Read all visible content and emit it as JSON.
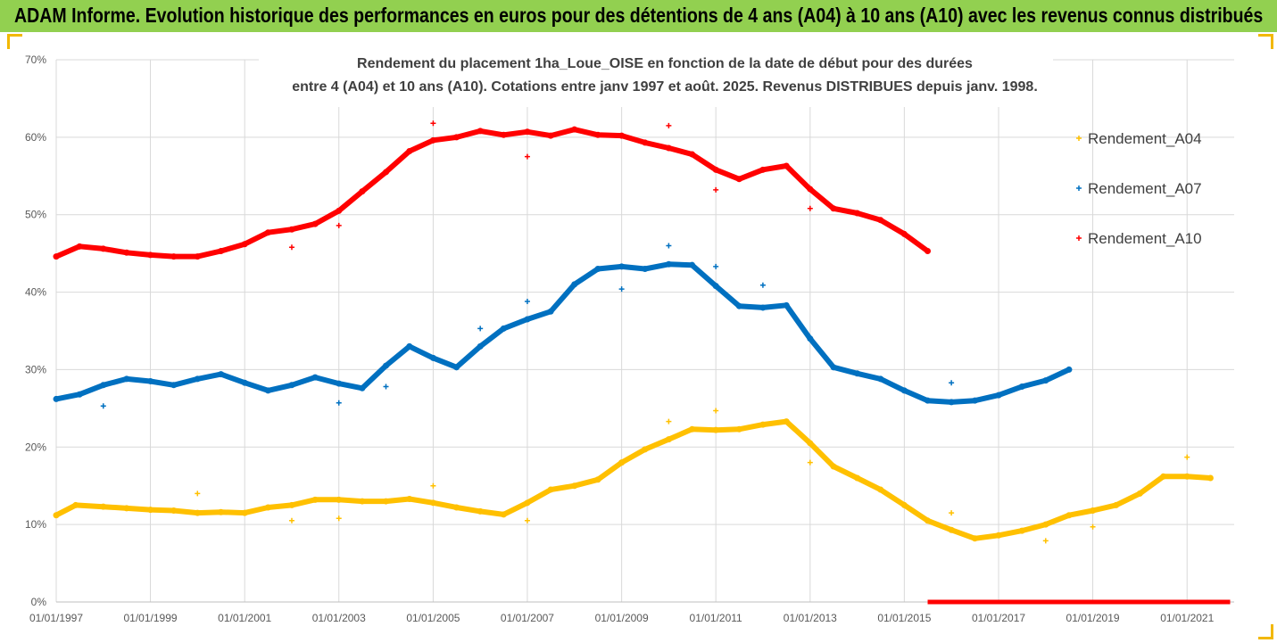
{
  "banner": {
    "title": "ADAM Informe. Evolution historique des performances en euros pour des détentions de 4 ans (A04) à 10 ans (A10) avec les revenus connus distribués"
  },
  "colors": {
    "banner": "#92d050",
    "corner": "#f2b800",
    "A04": "#ffc000",
    "A07": "#0070c0",
    "A10": "#ff0000",
    "grid": "#d9d9d9"
  },
  "chart_data": {
    "type": "scatter",
    "title_lines": [
      "Rendement du placement 1ha_Loue_OISE en fonction de la date de début pour des durées",
      "entre 4 (A04) et 10 ans (A10). Cotations entre janv 1997 et août. 2025. Revenus DISTRIBUES depuis janv. 1998."
    ],
    "xlim": [
      "1997-01-01",
      "2022-01-01"
    ],
    "ylim": [
      0,
      70
    ],
    "y_unit": "%",
    "y_ticks": [
      0,
      10,
      20,
      30,
      40,
      50,
      60,
      70
    ],
    "y_tick_labels": [
      "0%",
      "10%",
      "20%",
      "30%",
      "40%",
      "50%",
      "60%",
      "70%"
    ],
    "x_ticks": [
      "1997-01-01",
      "1999-01-01",
      "2001-01-01",
      "2003-01-01",
      "2005-01-01",
      "2007-01-01",
      "2009-01-01",
      "2011-01-01",
      "2013-01-01",
      "2015-01-01",
      "2017-01-01",
      "2019-01-01",
      "2021-01-01"
    ],
    "x_tick_labels": [
      "01/01/1997",
      "01/01/1999",
      "01/01/2001",
      "01/01/2003",
      "01/01/2005",
      "01/01/2007",
      "01/01/2009",
      "01/01/2011",
      "01/01/2013",
      "01/01/2015",
      "01/01/2017",
      "01/01/2019",
      "01/01/2021"
    ],
    "grid": true,
    "legend_position": "right",
    "series": [
      {
        "name": "Rendement_A04",
        "color": "#ffc000",
        "points": [
          [
            "1997-01-01",
            11.2
          ],
          [
            "1997-06-01",
            12.5
          ],
          [
            "1998-01-01",
            12.3
          ],
          [
            "1998-07-01",
            12.1
          ],
          [
            "1999-01-01",
            11.9
          ],
          [
            "1999-07-01",
            11.8
          ],
          [
            "2000-01-01",
            11.5
          ],
          [
            "2000-07-01",
            11.6
          ],
          [
            "2001-01-01",
            11.5
          ],
          [
            "2001-07-01",
            12.2
          ],
          [
            "2002-01-01",
            12.5
          ],
          [
            "2002-07-01",
            13.2
          ],
          [
            "2003-01-01",
            13.2
          ],
          [
            "2003-07-01",
            13.0
          ],
          [
            "2004-01-01",
            13.0
          ],
          [
            "2004-07-01",
            13.3
          ],
          [
            "2005-01-01",
            12.8
          ],
          [
            "2005-07-01",
            12.2
          ],
          [
            "2006-01-01",
            11.7
          ],
          [
            "2006-07-01",
            11.3
          ],
          [
            "2007-01-01",
            12.8
          ],
          [
            "2007-07-01",
            14.5
          ],
          [
            "2008-01-01",
            15.0
          ],
          [
            "2008-07-01",
            15.8
          ],
          [
            "2009-01-01",
            18.0
          ],
          [
            "2009-07-01",
            19.7
          ],
          [
            "2010-01-01",
            21.0
          ],
          [
            "2010-07-01",
            22.3
          ],
          [
            "2011-01-01",
            22.2
          ],
          [
            "2011-07-01",
            22.3
          ],
          [
            "2012-01-01",
            22.9
          ],
          [
            "2012-07-01",
            23.3
          ],
          [
            "2013-01-01",
            20.5
          ],
          [
            "2013-07-01",
            17.5
          ],
          [
            "2014-01-01",
            16.0
          ],
          [
            "2014-07-01",
            14.5
          ],
          [
            "2015-01-01",
            12.5
          ],
          [
            "2015-07-01",
            10.5
          ],
          [
            "2016-01-01",
            9.3
          ],
          [
            "2016-07-01",
            8.2
          ],
          [
            "2017-01-01",
            8.6
          ],
          [
            "2017-07-01",
            9.2
          ],
          [
            "2018-01-01",
            10.0
          ],
          [
            "2018-07-01",
            11.2
          ],
          [
            "2019-01-01",
            11.8
          ],
          [
            "2019-07-01",
            12.5
          ],
          [
            "2020-01-01",
            14.0
          ],
          [
            "2020-07-01",
            16.2
          ],
          [
            "2021-01-01",
            16.2
          ],
          [
            "2021-07-01",
            16.0
          ]
        ],
        "outliers": [
          [
            "2000-01-01",
            14.0
          ],
          [
            "2002-01-01",
            10.5
          ],
          [
            "2003-01-01",
            10.8
          ],
          [
            "2005-01-01",
            15.0
          ],
          [
            "2007-01-01",
            10.5
          ],
          [
            "2010-01-01",
            23.3
          ],
          [
            "2011-01-01",
            24.7
          ],
          [
            "2013-01-01",
            18.0
          ],
          [
            "2016-01-01",
            11.5
          ],
          [
            "2018-01-01",
            7.9
          ],
          [
            "2019-01-01",
            9.7
          ],
          [
            "2021-01-01",
            18.7
          ]
        ]
      },
      {
        "name": "Rendement_A07",
        "color": "#0070c0",
        "points": [
          [
            "1997-01-01",
            26.2
          ],
          [
            "1997-07-01",
            26.8
          ],
          [
            "1998-01-01",
            28.0
          ],
          [
            "1998-07-01",
            28.8
          ],
          [
            "1999-01-01",
            28.5
          ],
          [
            "1999-07-01",
            28.0
          ],
          [
            "2000-01-01",
            28.8
          ],
          [
            "2000-07-01",
            29.4
          ],
          [
            "2001-01-01",
            28.3
          ],
          [
            "2001-07-01",
            27.3
          ],
          [
            "2002-01-01",
            28.0
          ],
          [
            "2002-07-01",
            29.0
          ],
          [
            "2003-01-01",
            28.2
          ],
          [
            "2003-07-01",
            27.6
          ],
          [
            "2004-01-01",
            30.5
          ],
          [
            "2004-07-01",
            33.0
          ],
          [
            "2005-01-01",
            31.5
          ],
          [
            "2005-07-01",
            30.3
          ],
          [
            "2006-01-01",
            33.0
          ],
          [
            "2006-07-01",
            35.3
          ],
          [
            "2007-01-01",
            36.5
          ],
          [
            "2007-07-01",
            37.5
          ],
          [
            "2008-01-01",
            41.0
          ],
          [
            "2008-07-01",
            43.0
          ],
          [
            "2009-01-01",
            43.3
          ],
          [
            "2009-07-01",
            43.0
          ],
          [
            "2010-01-01",
            43.6
          ],
          [
            "2010-07-01",
            43.5
          ],
          [
            "2011-01-01",
            40.8
          ],
          [
            "2011-07-01",
            38.2
          ],
          [
            "2012-01-01",
            38.0
          ],
          [
            "2012-07-01",
            38.3
          ],
          [
            "2013-01-01",
            34.0
          ],
          [
            "2013-07-01",
            30.3
          ],
          [
            "2014-01-01",
            29.5
          ],
          [
            "2014-07-01",
            28.8
          ],
          [
            "2015-01-01",
            27.3
          ],
          [
            "2015-07-01",
            26.0
          ],
          [
            "2016-01-01",
            25.8
          ],
          [
            "2016-07-01",
            26.0
          ],
          [
            "2017-01-01",
            26.7
          ],
          [
            "2017-07-01",
            27.8
          ],
          [
            "2018-01-01",
            28.6
          ],
          [
            "2018-07-01",
            30.0
          ]
        ],
        "outliers": [
          [
            "1998-01-01",
            25.3
          ],
          [
            "2003-01-01",
            25.7
          ],
          [
            "2004-01-01",
            27.8
          ],
          [
            "2006-01-01",
            35.3
          ],
          [
            "2007-01-01",
            38.8
          ],
          [
            "2009-01-01",
            40.4
          ],
          [
            "2010-01-01",
            46.0
          ],
          [
            "2011-01-01",
            43.3
          ],
          [
            "2012-01-01",
            40.9
          ],
          [
            "2016-01-01",
            28.3
          ]
        ]
      },
      {
        "name": "Rendement_A10",
        "color": "#ff0000",
        "points": [
          [
            "1997-01-01",
            44.6
          ],
          [
            "1997-07-01",
            45.9
          ],
          [
            "1998-01-01",
            45.6
          ],
          [
            "1998-07-01",
            45.1
          ],
          [
            "1999-01-01",
            44.8
          ],
          [
            "1999-07-01",
            44.6
          ],
          [
            "2000-01-01",
            44.6
          ],
          [
            "2000-07-01",
            45.3
          ],
          [
            "2001-01-01",
            46.2
          ],
          [
            "2001-07-01",
            47.7
          ],
          [
            "2002-01-01",
            48.1
          ],
          [
            "2002-07-01",
            48.8
          ],
          [
            "2003-01-01",
            50.5
          ],
          [
            "2003-07-01",
            53.0
          ],
          [
            "2004-01-01",
            55.5
          ],
          [
            "2004-07-01",
            58.2
          ],
          [
            "2005-01-01",
            59.6
          ],
          [
            "2005-07-01",
            60.0
          ],
          [
            "2006-01-01",
            60.8
          ],
          [
            "2006-07-01",
            60.3
          ],
          [
            "2007-01-01",
            60.7
          ],
          [
            "2007-07-01",
            60.2
          ],
          [
            "2008-01-01",
            61.0
          ],
          [
            "2008-07-01",
            60.3
          ],
          [
            "2009-01-01",
            60.2
          ],
          [
            "2009-07-01",
            59.3
          ],
          [
            "2010-01-01",
            58.6
          ],
          [
            "2010-07-01",
            57.8
          ],
          [
            "2011-01-01",
            55.8
          ],
          [
            "2011-07-01",
            54.6
          ],
          [
            "2012-01-01",
            55.8
          ],
          [
            "2012-07-01",
            56.3
          ],
          [
            "2013-01-01",
            53.3
          ],
          [
            "2013-07-01",
            50.8
          ],
          [
            "2014-01-01",
            50.2
          ],
          [
            "2014-07-01",
            49.3
          ],
          [
            "2015-01-01",
            47.5
          ],
          [
            "2015-07-01",
            45.3
          ]
        ],
        "outliers": [
          [
            "2002-01-01",
            45.8
          ],
          [
            "2003-01-01",
            48.6
          ],
          [
            "2005-01-01",
            61.8
          ],
          [
            "2007-01-01",
            57.5
          ],
          [
            "2010-01-01",
            61.5
          ],
          [
            "2011-01-01",
            53.2
          ],
          [
            "2013-01-01",
            50.8
          ]
        ],
        "zero_range": [
          "2015-07-01",
          "2021-12-01"
        ]
      }
    ]
  }
}
